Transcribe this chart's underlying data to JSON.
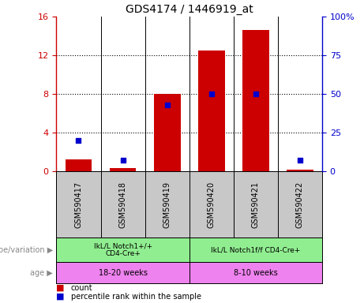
{
  "title": "GDS4174 / 1446919_at",
  "samples": [
    "GSM590417",
    "GSM590418",
    "GSM590419",
    "GSM590420",
    "GSM590421",
    "GSM590422"
  ],
  "count_values": [
    1.2,
    0.3,
    8.0,
    12.5,
    14.6,
    0.2
  ],
  "percentile_values": [
    20,
    7,
    43,
    50,
    50,
    7
  ],
  "left_ylim": [
    0,
    16
  ],
  "right_ylim": [
    0,
    100
  ],
  "left_yticks": [
    0,
    4,
    8,
    12,
    16
  ],
  "right_yticks": [
    0,
    25,
    50,
    75,
    100
  ],
  "right_yticklabels": [
    "0",
    "25",
    "50",
    "75",
    "100%"
  ],
  "bar_color": "#cc0000",
  "dot_color": "#0000cc",
  "genotype_groups": [
    {
      "label": "IkL/L Notch1+/+\nCD4-Cre+",
      "start": 0,
      "end": 3,
      "color": "#90ee90"
    },
    {
      "label": "IkL/L Notch1f/f CD4-Cre+",
      "start": 3,
      "end": 6,
      "color": "#90ee90"
    }
  ],
  "age_groups": [
    {
      "label": "18-20 weeks",
      "start": 0,
      "end": 3,
      "color": "#ee82ee"
    },
    {
      "label": "8-10 weeks",
      "start": 3,
      "end": 6,
      "color": "#ee82ee"
    }
  ],
  "genotype_label": "genotype/variation",
  "age_label": "age",
  "legend_count": "count",
  "legend_percentile": "percentile rank within the sample",
  "sample_box_color": "#c8c8c8",
  "title_color": "#000000",
  "left_axis_color": "#cc0000",
  "right_axis_color": "#0000cc",
  "hline_values": [
    4,
    8,
    12
  ],
  "bar_width": 0.6
}
